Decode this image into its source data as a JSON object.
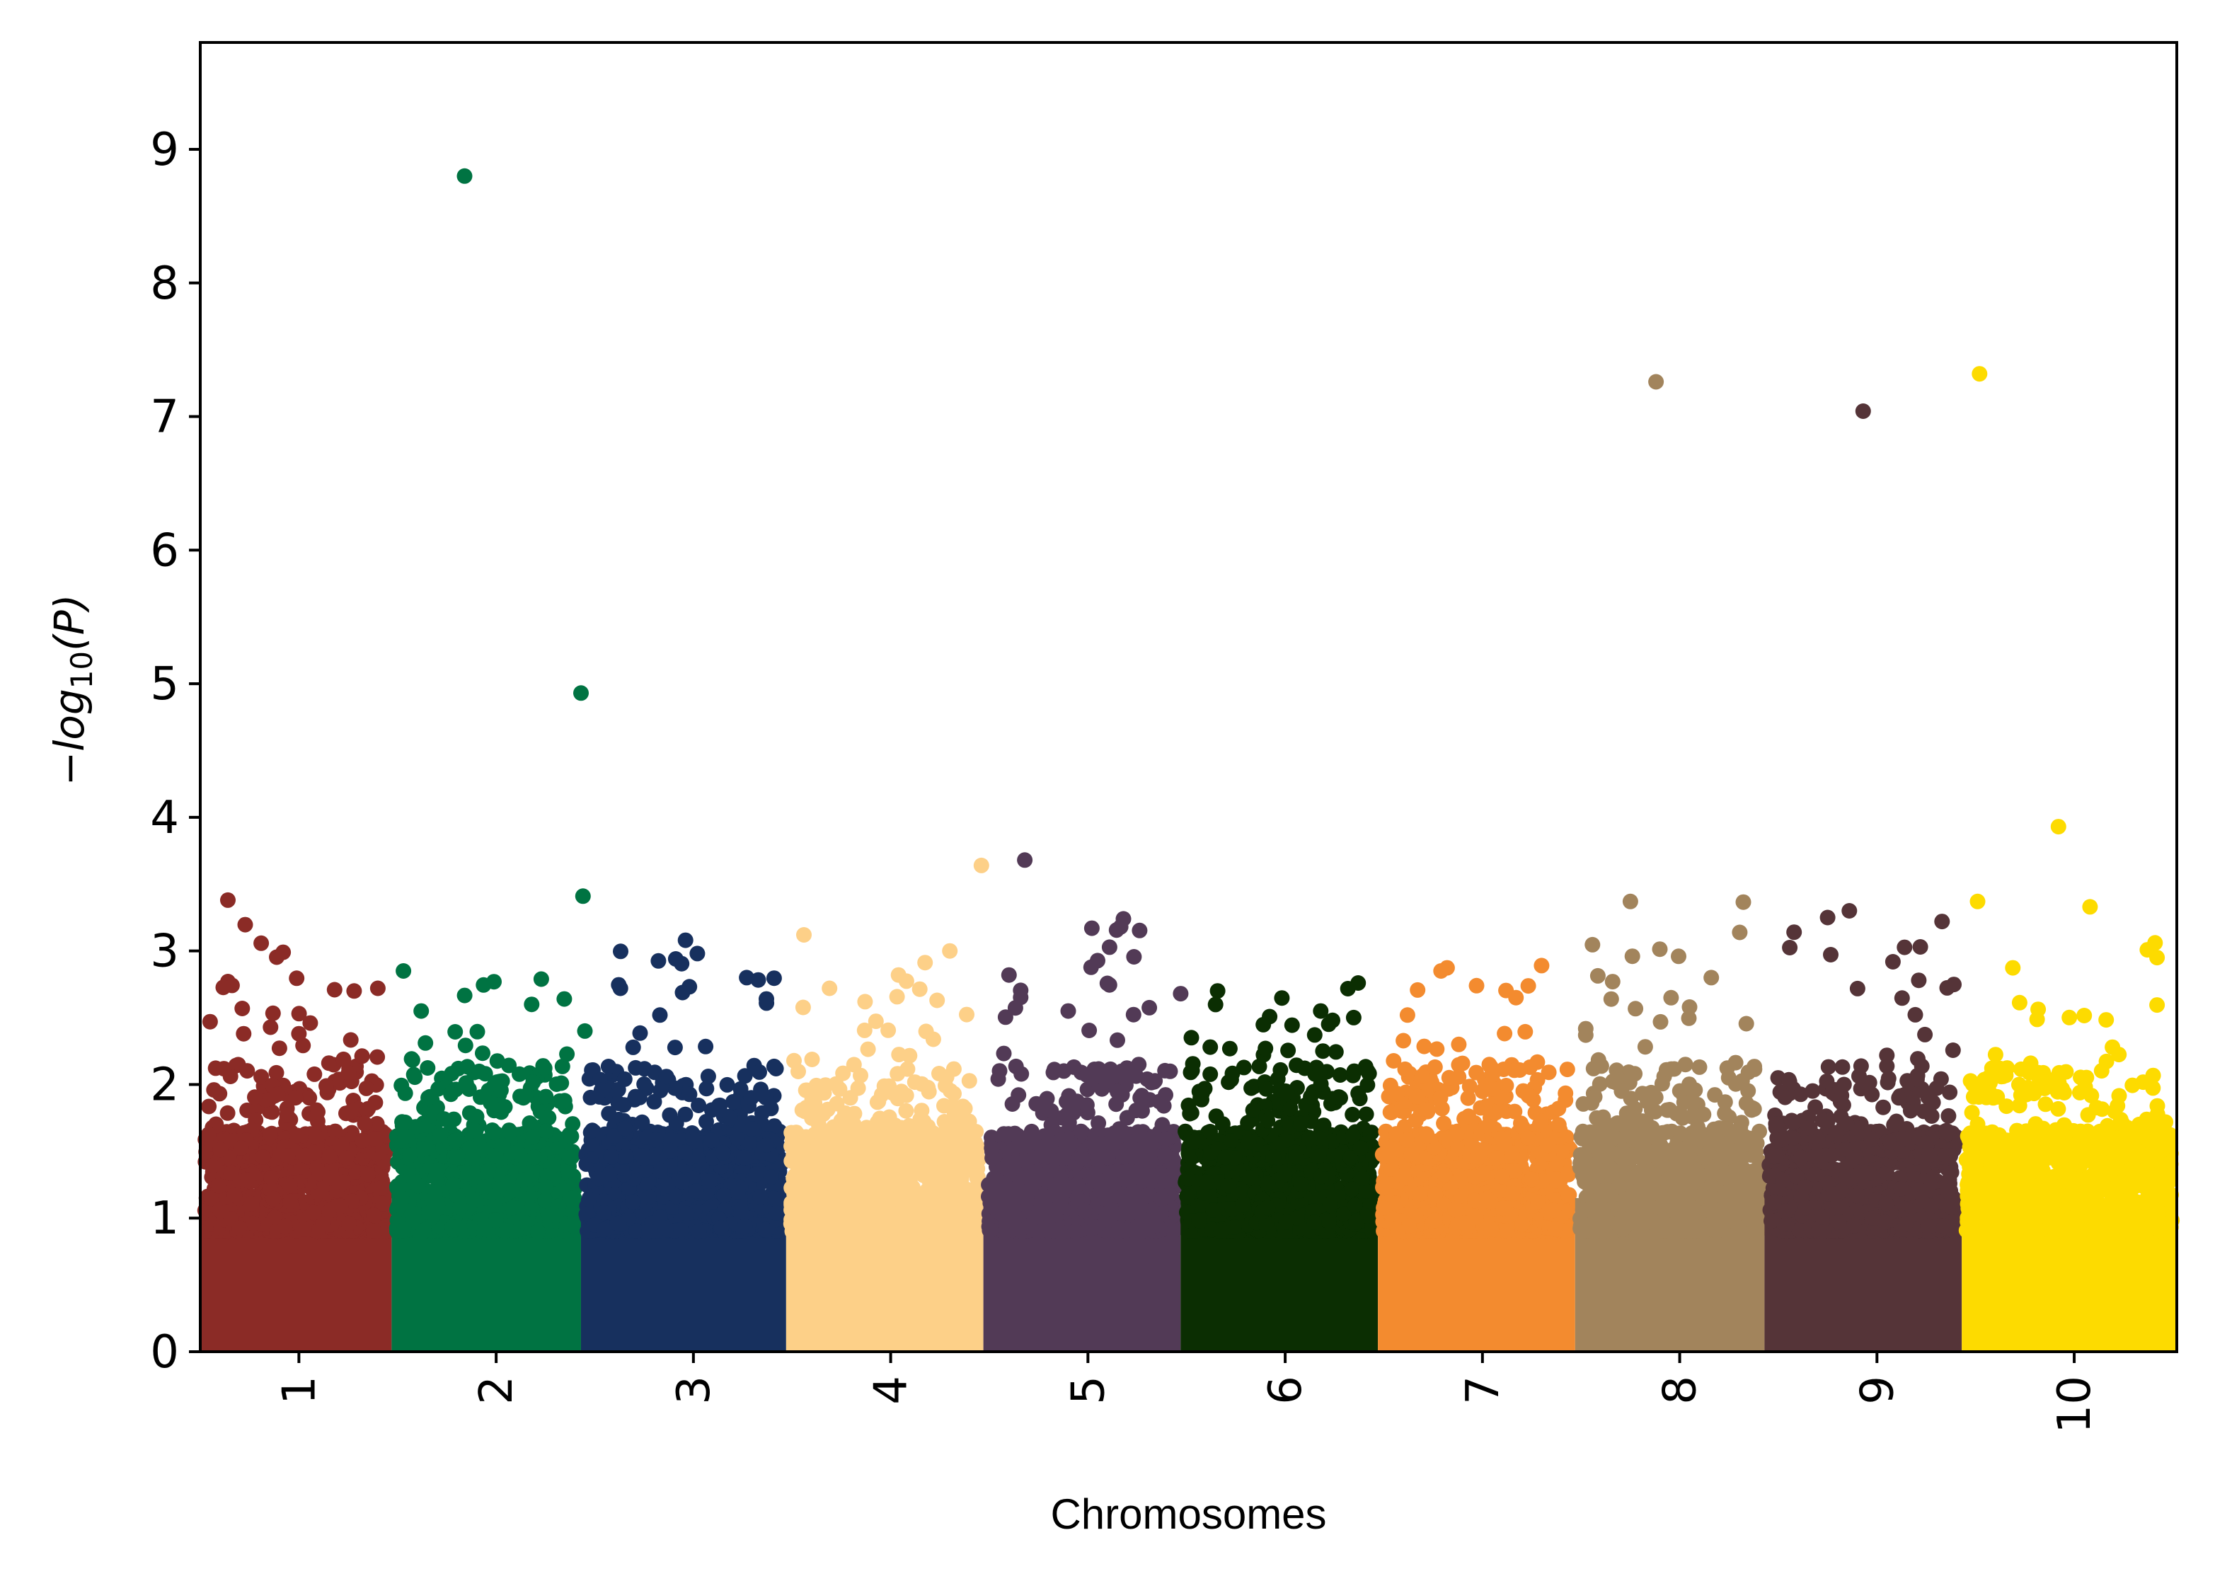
{
  "chart_data": {
    "type": "scatter",
    "title": "",
    "xlabel": "Chromosomes",
    "ylabel": {
      "prefix": "−",
      "log": "log",
      "sub": "10",
      "arg": "(P)"
    },
    "ylim": [
      0,
      9.8
    ],
    "yticks": [
      0,
      1,
      2,
      3,
      4,
      5,
      6,
      7,
      8,
      9
    ],
    "grid": false,
    "legend": "none",
    "chromosomes": [
      {
        "name": "1",
        "color": "#8b2b26",
        "range": [
          0.5,
          1.47
        ],
        "max": 3.38,
        "peaks": [
          {
            "x": 0.64,
            "y": 3.38
          },
          {
            "x": 0.92,
            "y": 2.99
          },
          {
            "x": 1.28,
            "y": 2.7
          },
          {
            "x": 1.4,
            "y": 2.72
          },
          {
            "x": 0.55,
            "y": 2.47
          },
          {
            "x": 1.0,
            "y": 2.38
          },
          {
            "x": 0.72,
            "y": 2.38
          }
        ]
      },
      {
        "name": "2",
        "color": "#007342",
        "range": [
          1.47,
          2.43
        ],
        "max": 2.85,
        "peaks": [
          {
            "x": 1.84,
            "y": 8.8
          },
          {
            "x": 2.43,
            "y": 4.93
          },
          {
            "x": 2.44,
            "y": 3.41
          },
          {
            "x": 1.53,
            "y": 2.85
          },
          {
            "x": 2.18,
            "y": 2.6
          },
          {
            "x": 1.62,
            "y": 2.55
          },
          {
            "x": 2.45,
            "y": 2.4
          }
        ]
      },
      {
        "name": "3",
        "color": "#17305e",
        "range": [
          2.43,
          3.47
        ],
        "max": 3.08,
        "peaks": [
          {
            "x": 2.96,
            "y": 3.08
          },
          {
            "x": 3.02,
            "y": 2.98
          },
          {
            "x": 3.27,
            "y": 2.8
          },
          {
            "x": 2.63,
            "y": 2.72
          },
          {
            "x": 3.37,
            "y": 2.64
          },
          {
            "x": 2.83,
            "y": 2.52
          }
        ]
      },
      {
        "name": "4",
        "color": "#fdd088",
        "range": [
          3.47,
          4.47
        ],
        "max": 3.12,
        "peaks": [
          {
            "x": 4.46,
            "y": 3.64
          },
          {
            "x": 3.56,
            "y": 3.12
          },
          {
            "x": 4.3,
            "y": 3.0
          },
          {
            "x": 4.04,
            "y": 2.82
          },
          {
            "x": 3.69,
            "y": 2.72
          },
          {
            "x": 3.87,
            "y": 2.62
          }
        ]
      },
      {
        "name": "5",
        "color": "#523a56",
        "range": [
          4.47,
          5.47
        ],
        "max": 3.24,
        "peaks": [
          {
            "x": 4.68,
            "y": 3.68
          },
          {
            "x": 5.18,
            "y": 3.24
          },
          {
            "x": 5.02,
            "y": 3.17
          },
          {
            "x": 4.6,
            "y": 2.82
          },
          {
            "x": 5.47,
            "y": 2.68
          },
          {
            "x": 4.9,
            "y": 2.55
          }
        ]
      },
      {
        "name": "6",
        "color": "#0b2e02",
        "range": [
          5.47,
          6.47
        ],
        "max": 2.76,
        "peaks": [
          {
            "x": 6.37,
            "y": 2.76
          },
          {
            "x": 6.18,
            "y": 2.55
          },
          {
            "x": 6.24,
            "y": 2.48
          },
          {
            "x": 5.62,
            "y": 2.28
          },
          {
            "x": 5.9,
            "y": 2.27
          },
          {
            "x": 6.35,
            "y": 2.1
          }
        ]
      },
      {
        "name": "7",
        "color": "#f38b2f",
        "range": [
          6.47,
          7.47
        ],
        "max": 2.89,
        "peaks": [
          {
            "x": 7.3,
            "y": 2.89
          },
          {
            "x": 6.79,
            "y": 2.85
          },
          {
            "x": 6.97,
            "y": 2.74
          },
          {
            "x": 7.17,
            "y": 2.65
          },
          {
            "x": 6.62,
            "y": 2.52
          },
          {
            "x": 6.88,
            "y": 2.3
          }
        ]
      },
      {
        "name": "8",
        "color": "#a2845c",
        "range": [
          7.47,
          8.43
        ],
        "max": 3.37,
        "peaks": [
          {
            "x": 7.88,
            "y": 7.26
          },
          {
            "x": 7.75,
            "y": 3.37
          },
          {
            "x": 7.76,
            "y": 2.96
          },
          {
            "x": 8.16,
            "y": 2.8
          },
          {
            "x": 7.66,
            "y": 2.77
          },
          {
            "x": 8.05,
            "y": 2.58
          }
        ]
      },
      {
        "name": "9",
        "color": "#553438",
        "range": [
          8.43,
          9.43
        ],
        "max": 3.31,
        "peaks": [
          {
            "x": 8.93,
            "y": 7.04
          },
          {
            "x": 8.86,
            "y": 3.3
          },
          {
            "x": 9.33,
            "y": 3.22
          },
          {
            "x": 8.75,
            "y": 3.25
          },
          {
            "x": 8.58,
            "y": 3.14
          },
          {
            "x": 9.22,
            "y": 3.03
          }
        ]
      },
      {
        "name": "10",
        "color": "#fddb00",
        "range": [
          9.43,
          10.52
        ],
        "max": 3.06,
        "peaks": [
          {
            "x": 9.52,
            "y": 7.32
          },
          {
            "x": 9.92,
            "y": 3.93
          },
          {
            "x": 9.51,
            "y": 3.37
          },
          {
            "x": 10.08,
            "y": 3.33
          },
          {
            "x": 10.41,
            "y": 3.06
          },
          {
            "x": 10.42,
            "y": 2.95
          }
        ]
      }
    ],
    "xlim": [
      0.5,
      10.52
    ]
  }
}
